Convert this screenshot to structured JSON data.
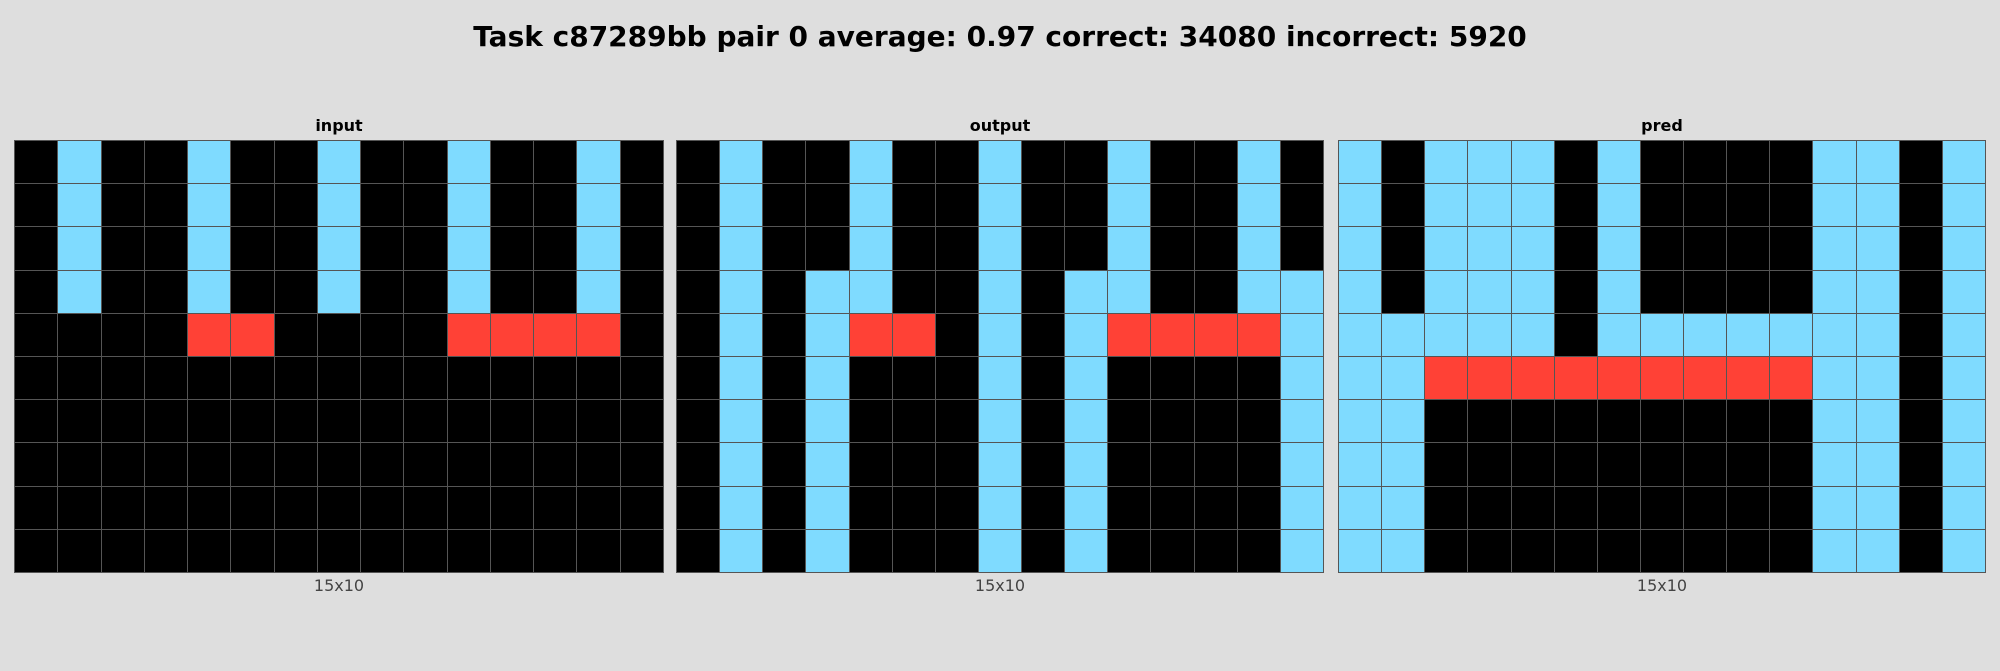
{
  "title": "Task c87289bb pair 0 average: 0.97 correct: 34080 incorrect: 5920",
  "palette": {
    "0": "#000000",
    "2": "#ff4136",
    "8": "#7fdbff"
  },
  "panels": [
    {
      "label": "input",
      "caption": "15x10",
      "grid": [
        [
          0,
          8,
          0,
          0,
          8,
          0,
          0,
          8,
          0,
          0,
          8,
          0,
          0,
          8,
          0
        ],
        [
          0,
          8,
          0,
          0,
          8,
          0,
          0,
          8,
          0,
          0,
          8,
          0,
          0,
          8,
          0
        ],
        [
          0,
          8,
          0,
          0,
          8,
          0,
          0,
          8,
          0,
          0,
          8,
          0,
          0,
          8,
          0
        ],
        [
          0,
          8,
          0,
          0,
          8,
          0,
          0,
          8,
          0,
          0,
          8,
          0,
          0,
          8,
          0
        ],
        [
          0,
          0,
          0,
          0,
          2,
          2,
          0,
          0,
          0,
          0,
          2,
          2,
          2,
          2,
          0
        ],
        [
          0,
          0,
          0,
          0,
          0,
          0,
          0,
          0,
          0,
          0,
          0,
          0,
          0,
          0,
          0
        ],
        [
          0,
          0,
          0,
          0,
          0,
          0,
          0,
          0,
          0,
          0,
          0,
          0,
          0,
          0,
          0
        ],
        [
          0,
          0,
          0,
          0,
          0,
          0,
          0,
          0,
          0,
          0,
          0,
          0,
          0,
          0,
          0
        ],
        [
          0,
          0,
          0,
          0,
          0,
          0,
          0,
          0,
          0,
          0,
          0,
          0,
          0,
          0,
          0
        ],
        [
          0,
          0,
          0,
          0,
          0,
          0,
          0,
          0,
          0,
          0,
          0,
          0,
          0,
          0,
          0
        ]
      ]
    },
    {
      "label": "output",
      "caption": "15x10",
      "grid": [
        [
          0,
          8,
          0,
          0,
          8,
          0,
          0,
          8,
          0,
          0,
          8,
          0,
          0,
          8,
          0
        ],
        [
          0,
          8,
          0,
          0,
          8,
          0,
          0,
          8,
          0,
          0,
          8,
          0,
          0,
          8,
          0
        ],
        [
          0,
          8,
          0,
          0,
          8,
          0,
          0,
          8,
          0,
          0,
          8,
          0,
          0,
          8,
          0
        ],
        [
          0,
          8,
          0,
          8,
          8,
          0,
          0,
          8,
          0,
          8,
          8,
          0,
          0,
          8,
          8
        ],
        [
          0,
          8,
          0,
          8,
          2,
          2,
          0,
          8,
          0,
          8,
          2,
          2,
          2,
          2,
          8
        ],
        [
          0,
          8,
          0,
          8,
          0,
          0,
          0,
          8,
          0,
          8,
          0,
          0,
          0,
          0,
          8
        ],
        [
          0,
          8,
          0,
          8,
          0,
          0,
          0,
          8,
          0,
          8,
          0,
          0,
          0,
          0,
          8
        ],
        [
          0,
          8,
          0,
          8,
          0,
          0,
          0,
          8,
          0,
          8,
          0,
          0,
          0,
          0,
          8
        ],
        [
          0,
          8,
          0,
          8,
          0,
          0,
          0,
          8,
          0,
          8,
          0,
          0,
          0,
          0,
          8
        ],
        [
          0,
          8,
          0,
          8,
          0,
          0,
          0,
          8,
          0,
          8,
          0,
          0,
          0,
          0,
          8
        ]
      ]
    },
    {
      "label": "pred",
      "caption": "15x10",
      "grid": [
        [
          8,
          0,
          8,
          8,
          8,
          0,
          8,
          0,
          0,
          0,
          0,
          8,
          8,
          0,
          8
        ],
        [
          8,
          0,
          8,
          8,
          8,
          0,
          8,
          0,
          0,
          0,
          0,
          8,
          8,
          0,
          8
        ],
        [
          8,
          0,
          8,
          8,
          8,
          0,
          8,
          0,
          0,
          0,
          0,
          8,
          8,
          0,
          8
        ],
        [
          8,
          0,
          8,
          8,
          8,
          0,
          8,
          0,
          0,
          0,
          0,
          8,
          8,
          0,
          8
        ],
        [
          8,
          8,
          8,
          8,
          8,
          0,
          8,
          8,
          8,
          8,
          8,
          8,
          8,
          0,
          8
        ],
        [
          8,
          8,
          2,
          2,
          2,
          2,
          2,
          2,
          2,
          2,
          2,
          8,
          8,
          0,
          8
        ],
        [
          8,
          8,
          0,
          0,
          0,
          0,
          0,
          0,
          0,
          0,
          0,
          8,
          8,
          0,
          8
        ],
        [
          8,
          8,
          0,
          0,
          0,
          0,
          0,
          0,
          0,
          0,
          0,
          8,
          8,
          0,
          8
        ],
        [
          8,
          8,
          0,
          0,
          0,
          0,
          0,
          0,
          0,
          0,
          0,
          8,
          8,
          0,
          8
        ],
        [
          8,
          8,
          0,
          0,
          0,
          0,
          0,
          0,
          0,
          0,
          0,
          8,
          8,
          0,
          8
        ]
      ]
    }
  ]
}
